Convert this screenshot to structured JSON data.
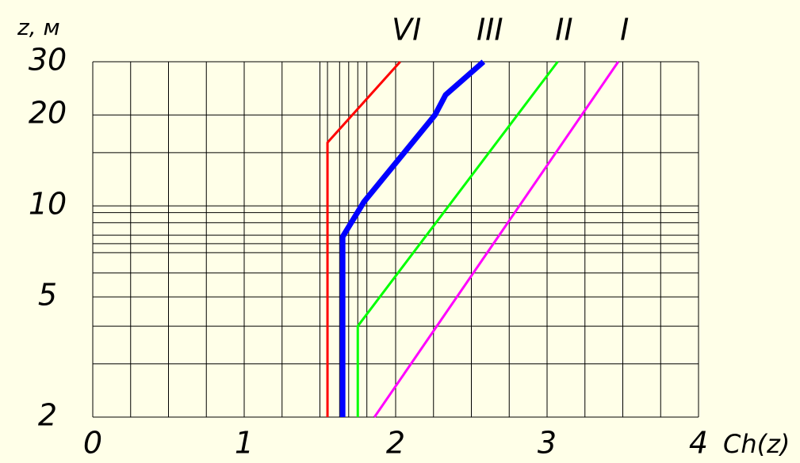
{
  "chart_data": {
    "type": "line",
    "y_label": "z, м",
    "x_label": "Ch(z)",
    "xlim": [
      0,
      4
    ],
    "xticks": [
      0,
      1,
      2,
      3,
      4
    ],
    "x_minor_grid": [
      0.25,
      0.5,
      0.75,
      1.25,
      1.5,
      1.55,
      1.63,
      1.69,
      1.75,
      1.81,
      2.25,
      2.5,
      2.75,
      3.25,
      3.5,
      3.75
    ],
    "ylim": [
      2,
      30
    ],
    "yticks": [
      2,
      5,
      10,
      20,
      30
    ],
    "y_log": true,
    "y_minor_grid": [
      3,
      4,
      6,
      7,
      7.5,
      8,
      8.8,
      9.5,
      15
    ],
    "grid": true,
    "series": [
      {
        "name": "VI",
        "color": "#ff0000",
        "width": 3,
        "x": [
          1.55,
          1.55,
          2.03
        ],
        "values": [
          2,
          16.2,
          30
        ]
      },
      {
        "name": "III",
        "color": "#0000ff",
        "width": 7,
        "x": [
          1.65,
          1.65,
          1.79,
          2.26,
          2.33,
          2.58
        ],
        "values": [
          2,
          7.9,
          10.3,
          20,
          23.3,
          30
        ]
      },
      {
        "name": "II",
        "color": "#00ff00",
        "width": 3,
        "x": [
          1.75,
          1.75,
          3.07
        ],
        "values": [
          2,
          4,
          30
        ]
      },
      {
        "name": "I",
        "color": "#ff00ff",
        "width": 3,
        "x": [
          1.86,
          3.47
        ],
        "values": [
          2,
          30
        ]
      }
    ]
  }
}
